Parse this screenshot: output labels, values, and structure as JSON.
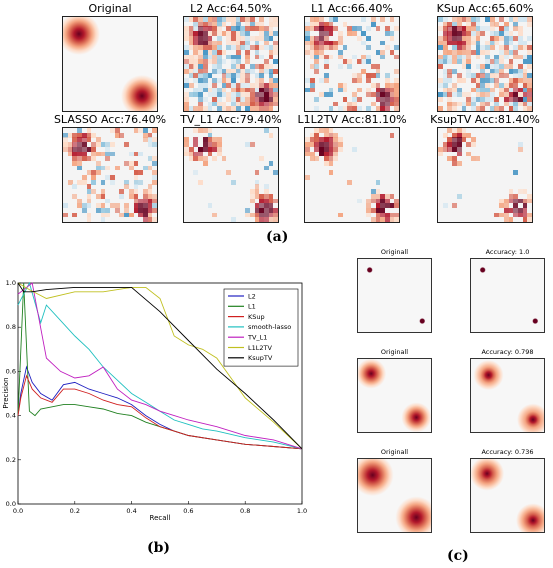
{
  "panel_a": {
    "label": "(a)",
    "titles": [
      "Original",
      "L2 Acc:64.50%",
      "L1 Acc:66.40%",
      "KSup Acc:65.60%",
      "SLASSO Acc:76.40%",
      "TV_L1 Acc:79.40%",
      "L1L2TV Acc:81.10%",
      "KsupTV Acc:81.40%"
    ]
  },
  "panel_b": {
    "label": "(b)"
  },
  "panel_c": {
    "label": "(c)",
    "rows": [
      {
        "left": "Originall",
        "right": "Accuracy: 1.0"
      },
      {
        "left": "Originall",
        "right": "Accuracy: 0.798"
      },
      {
        "left": "Originall",
        "right": "Accuracy: 0.736"
      }
    ]
  },
  "colors": {
    "red": "#b2182b",
    "blue": "#4393c3",
    "bg": "#f4f4f4"
  },
  "chart_data": {
    "type": "line",
    "xlabel": "Recall",
    "ylabel": "Precision",
    "xlim": [
      0.0,
      1.0
    ],
    "ylim": [
      0.0,
      1.0
    ],
    "xticks": [
      "0.0",
      "0.2",
      "0.4",
      "0.6",
      "0.8",
      "1.0"
    ],
    "yticks": [
      "0.0",
      "0.2",
      "0.4",
      "0.6",
      "0.8",
      "1.0"
    ],
    "legend_position": "top-right",
    "series": [
      {
        "name": "L2",
        "color": "#2020c0",
        "x": [
          0.0,
          0.01,
          0.03,
          0.05,
          0.08,
          0.12,
          0.16,
          0.2,
          0.25,
          0.3,
          0.35,
          0.4,
          0.45,
          0.5,
          0.55,
          0.6,
          0.7,
          0.8,
          0.9,
          1.0
        ],
        "y": [
          0.4,
          0.5,
          0.62,
          0.55,
          0.5,
          0.47,
          0.54,
          0.55,
          0.52,
          0.5,
          0.48,
          0.45,
          0.4,
          0.36,
          0.33,
          0.31,
          0.29,
          0.27,
          0.26,
          0.25
        ]
      },
      {
        "name": "L1",
        "color": "#208020",
        "x": [
          0.0,
          0.02,
          0.04,
          0.06,
          0.08,
          0.12,
          0.16,
          0.2,
          0.25,
          0.3,
          0.35,
          0.4,
          0.45,
          0.5,
          0.55,
          0.6,
          0.7,
          0.8,
          0.9,
          1.0
        ],
        "y": [
          0.4,
          1.0,
          0.42,
          0.4,
          0.43,
          0.44,
          0.45,
          0.45,
          0.44,
          0.43,
          0.41,
          0.4,
          0.37,
          0.35,
          0.33,
          0.31,
          0.29,
          0.27,
          0.26,
          0.25
        ]
      },
      {
        "name": "KSup",
        "color": "#d02020",
        "x": [
          0.0,
          0.01,
          0.03,
          0.05,
          0.08,
          0.12,
          0.16,
          0.2,
          0.25,
          0.3,
          0.35,
          0.4,
          0.45,
          0.5,
          0.55,
          0.6,
          0.7,
          0.8,
          0.9,
          1.0
        ],
        "y": [
          0.4,
          0.48,
          0.58,
          0.52,
          0.48,
          0.46,
          0.52,
          0.52,
          0.5,
          0.47,
          0.45,
          0.44,
          0.39,
          0.35,
          0.33,
          0.31,
          0.29,
          0.27,
          0.26,
          0.25
        ]
      },
      {
        "name": "smooth-lasso",
        "color": "#20c0c0",
        "x": [
          0.0,
          0.04,
          0.08,
          0.1,
          0.15,
          0.2,
          0.25,
          0.3,
          0.35,
          0.4,
          0.45,
          0.5,
          0.55,
          0.6,
          0.65,
          0.7,
          0.8,
          0.9,
          1.0
        ],
        "y": [
          0.9,
          1.0,
          0.82,
          0.9,
          0.83,
          0.76,
          0.7,
          0.62,
          0.56,
          0.5,
          0.46,
          0.42,
          0.38,
          0.36,
          0.34,
          0.33,
          0.3,
          0.28,
          0.25
        ]
      },
      {
        "name": "TV_L1",
        "color": "#c020c0",
        "x": [
          0.0,
          0.05,
          0.1,
          0.15,
          0.2,
          0.25,
          0.3,
          0.35,
          0.4,
          0.45,
          0.5,
          0.55,
          0.6,
          0.7,
          0.8,
          0.9,
          1.0
        ],
        "y": [
          0.95,
          1.0,
          0.66,
          0.6,
          0.57,
          0.58,
          0.62,
          0.52,
          0.47,
          0.45,
          0.42,
          0.4,
          0.38,
          0.35,
          0.31,
          0.29,
          0.25
        ]
      },
      {
        "name": "L1L2TV",
        "color": "#c0c020",
        "x": [
          0.0,
          0.04,
          0.1,
          0.2,
          0.3,
          0.4,
          0.45,
          0.5,
          0.55,
          0.6,
          0.65,
          0.7,
          0.8,
          0.9,
          1.0
        ],
        "y": [
          1.0,
          0.97,
          0.93,
          0.96,
          0.96,
          0.98,
          0.98,
          0.93,
          0.76,
          0.72,
          0.7,
          0.66,
          0.48,
          0.37,
          0.25
        ]
      },
      {
        "name": "KsupTV",
        "color": "#000000",
        "x": [
          0.0,
          0.02,
          0.05,
          0.1,
          0.2,
          0.3,
          0.4,
          0.5,
          0.6,
          0.7,
          0.8,
          0.9,
          1.0
        ],
        "y": [
          1.0,
          0.96,
          0.96,
          0.97,
          0.98,
          0.98,
          0.98,
          0.87,
          0.74,
          0.61,
          0.5,
          0.38,
          0.25
        ]
      }
    ]
  }
}
